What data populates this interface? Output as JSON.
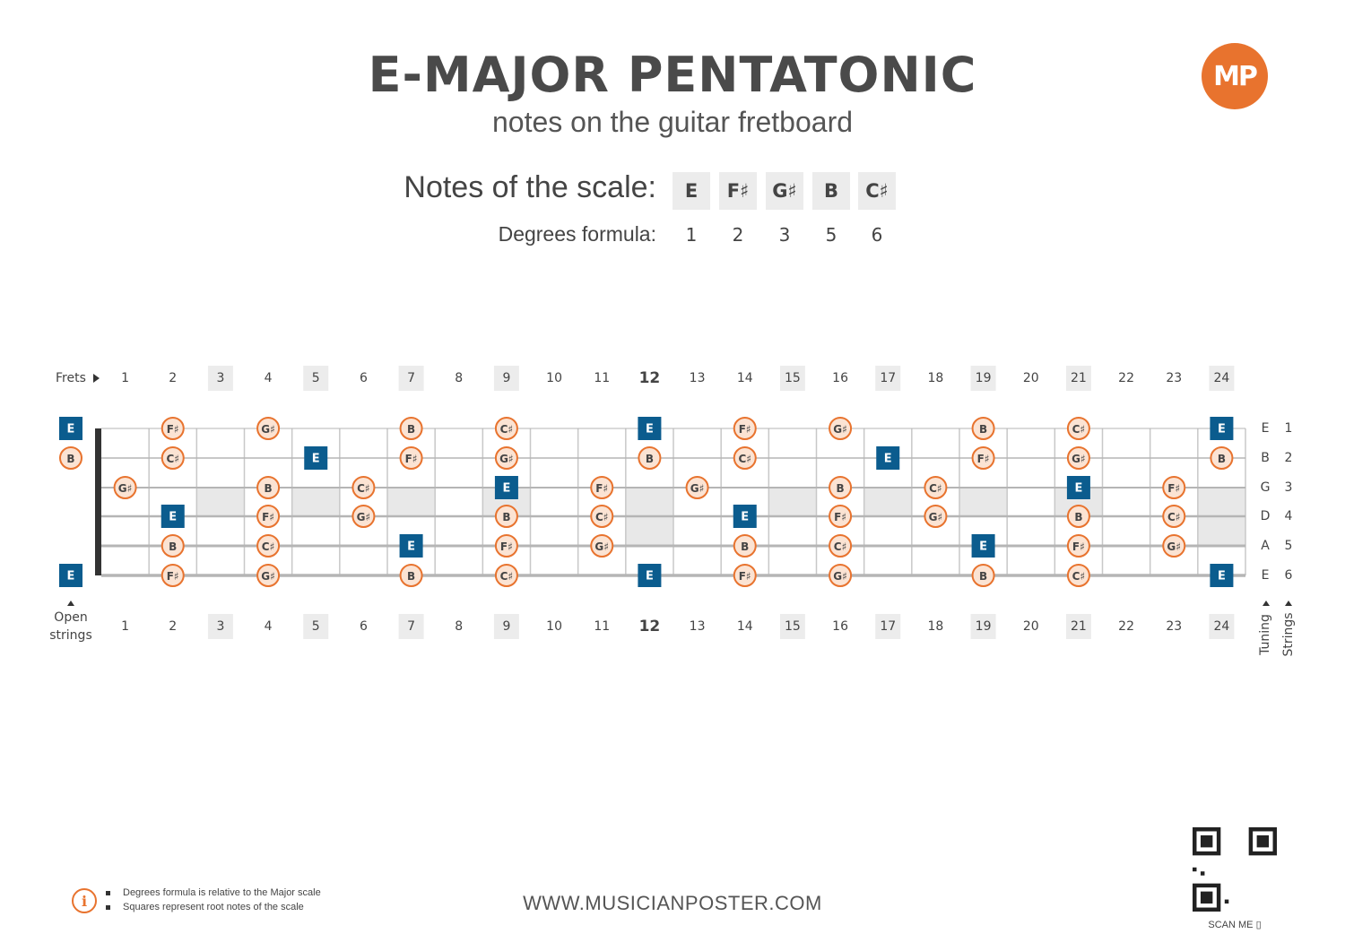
{
  "header": {
    "title": "E-MAJOR PENTATONIC",
    "subtitle": "notes on the guitar fretboard",
    "logo_text": "MP",
    "brand_color": "#e8732e"
  },
  "scale": {
    "notes_label": "Notes of the scale:",
    "degrees_label": "Degrees formula:",
    "notes": [
      "E",
      "F♯",
      "G♯",
      "B",
      "C♯"
    ],
    "degrees": [
      "1",
      "2",
      "3",
      "5",
      "6"
    ]
  },
  "fretboard": {
    "frets_label": "Frets",
    "open_strings_label": "Open strings",
    "tuning_label": "Tuning",
    "strings_label": "Strings",
    "fret_numbers": [
      1,
      2,
      3,
      4,
      5,
      6,
      7,
      8,
      9,
      10,
      11,
      12,
      13,
      14,
      15,
      16,
      17,
      18,
      19,
      20,
      21,
      22,
      23,
      24
    ],
    "highlighted_frets": [
      3,
      5,
      7,
      9,
      12,
      15,
      17,
      19,
      21,
      24
    ],
    "bold_fret": 12,
    "root_color": "#0b5c8e",
    "note_color": "#e8732e",
    "strings": [
      {
        "number": "1",
        "tuning": "E",
        "open": "E",
        "open_root": true,
        "notes": [
          {
            "fret": 2,
            "note": "F♯"
          },
          {
            "fret": 4,
            "note": "G♯"
          },
          {
            "fret": 7,
            "note": "B"
          },
          {
            "fret": 9,
            "note": "C♯"
          },
          {
            "fret": 12,
            "note": "E",
            "root": true
          },
          {
            "fret": 14,
            "note": "F♯"
          },
          {
            "fret": 16,
            "note": "G♯"
          },
          {
            "fret": 19,
            "note": "B"
          },
          {
            "fret": 21,
            "note": "C♯"
          },
          {
            "fret": 24,
            "note": "E",
            "root": true
          }
        ]
      },
      {
        "number": "2",
        "tuning": "B",
        "open": "B",
        "open_root": false,
        "notes": [
          {
            "fret": 2,
            "note": "C♯"
          },
          {
            "fret": 5,
            "note": "E",
            "root": true
          },
          {
            "fret": 7,
            "note": "F♯"
          },
          {
            "fret": 9,
            "note": "G♯"
          },
          {
            "fret": 12,
            "note": "B"
          },
          {
            "fret": 14,
            "note": "C♯"
          },
          {
            "fret": 17,
            "note": "E",
            "root": true
          },
          {
            "fret": 19,
            "note": "F♯"
          },
          {
            "fret": 21,
            "note": "G♯"
          },
          {
            "fret": 24,
            "note": "B"
          }
        ]
      },
      {
        "number": "3",
        "tuning": "G",
        "open": "",
        "open_root": false,
        "notes": [
          {
            "fret": 1,
            "note": "G♯"
          },
          {
            "fret": 4,
            "note": "B"
          },
          {
            "fret": 6,
            "note": "C♯"
          },
          {
            "fret": 9,
            "note": "E",
            "root": true
          },
          {
            "fret": 11,
            "note": "F♯"
          },
          {
            "fret": 13,
            "note": "G♯"
          },
          {
            "fret": 16,
            "note": "B"
          },
          {
            "fret": 18,
            "note": "C♯"
          },
          {
            "fret": 21,
            "note": "E",
            "root": true
          },
          {
            "fret": 23,
            "note": "F♯"
          }
        ]
      },
      {
        "number": "4",
        "tuning": "D",
        "open": "",
        "open_root": false,
        "notes": [
          {
            "fret": 2,
            "note": "E",
            "root": true
          },
          {
            "fret": 4,
            "note": "F♯"
          },
          {
            "fret": 6,
            "note": "G♯"
          },
          {
            "fret": 9,
            "note": "B"
          },
          {
            "fret": 11,
            "note": "C♯"
          },
          {
            "fret": 14,
            "note": "E",
            "root": true
          },
          {
            "fret": 16,
            "note": "F♯"
          },
          {
            "fret": 18,
            "note": "G♯"
          },
          {
            "fret": 21,
            "note": "B"
          },
          {
            "fret": 23,
            "note": "C♯"
          }
        ]
      },
      {
        "number": "5",
        "tuning": "A",
        "open": "",
        "open_root": false,
        "notes": [
          {
            "fret": 2,
            "note": "B"
          },
          {
            "fret": 4,
            "note": "C♯"
          },
          {
            "fret": 7,
            "note": "E",
            "root": true
          },
          {
            "fret": 9,
            "note": "F♯"
          },
          {
            "fret": 11,
            "note": "G♯"
          },
          {
            "fret": 14,
            "note": "B"
          },
          {
            "fret": 16,
            "note": "C♯"
          },
          {
            "fret": 19,
            "note": "E",
            "root": true
          },
          {
            "fret": 21,
            "note": "F♯"
          },
          {
            "fret": 23,
            "note": "G♯"
          }
        ]
      },
      {
        "number": "6",
        "tuning": "E",
        "open": "E",
        "open_root": true,
        "notes": [
          {
            "fret": 2,
            "note": "F♯"
          },
          {
            "fret": 4,
            "note": "G♯"
          },
          {
            "fret": 7,
            "note": "B"
          },
          {
            "fret": 9,
            "note": "C♯"
          },
          {
            "fret": 12,
            "note": "E",
            "root": true
          },
          {
            "fret": 14,
            "note": "F♯"
          },
          {
            "fret": 16,
            "note": "G♯"
          },
          {
            "fret": 19,
            "note": "B"
          },
          {
            "fret": 21,
            "note": "C♯"
          },
          {
            "fret": 24,
            "note": "E",
            "root": true
          }
        ]
      }
    ]
  },
  "footer": {
    "notes": [
      "Degrees formula is relative to the Major scale",
      "Squares represent root notes of the scale"
    ],
    "website": "WWW.MUSICIANPOSTER.COM",
    "scan_me": "SCAN ME"
  }
}
